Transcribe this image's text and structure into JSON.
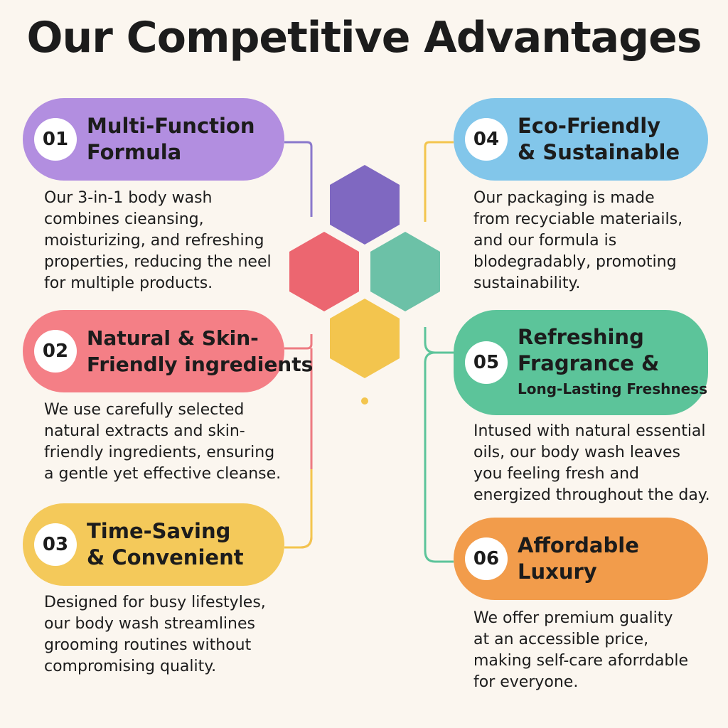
{
  "title": "Our Competitive Advantages",
  "items": [
    {
      "number": "01",
      "title_lines": [
        "Multi-Function",
        "Formula"
      ],
      "desc_lines": [
        "Our 3-in-1 body wash",
        "combines cieansing,",
        "moisturizing, and refreshing",
        "properties, reducing the neel",
        "for multiple products."
      ],
      "color": "#b28ee0"
    },
    {
      "number": "02",
      "title_lines": [
        "Natural & Skin-",
        "Friendly ingredients"
      ],
      "desc_lines": [
        "We use carefully selected",
        "natural extracts and skin-",
        "friendly ingredients, ensuring",
        "a gentle yet effective cleanse."
      ],
      "color": "#f47f86"
    },
    {
      "number": "03",
      "title_lines": [
        "Time-Saving",
        "& Convenient"
      ],
      "desc_lines": [
        "Designed for busy lifestyles,",
        "our body wash streamlines",
        "grooming routines without",
        "compromising quality."
      ],
      "color": "#f4c95a"
    },
    {
      "number": "04",
      "title_lines": [
        "Eco-Friendly",
        "& Sustainable"
      ],
      "desc_lines": [
        "Our packaging is made",
        "from recyciable materiails,",
        "and our formula is",
        "blodegradably, promoting",
        "sustainability."
      ],
      "color": "#82c6ea"
    },
    {
      "number": "05",
      "title_lines": [
        "Refreshing",
        "Fragrance &",
        "Long-Lasting Freshness"
      ],
      "desc_lines": [
        "Intused with natural essential",
        "oils, our body wash leaves",
        "you feeling fresh and",
        "energized throughout the day."
      ],
      "color": "#5cc49a"
    },
    {
      "number": "06",
      "title_lines": [
        "Affordable",
        "Luxury"
      ],
      "desc_lines": [
        "We offer premium guality",
        "at an accessible price,",
        "making self-care aforrdable",
        "for everyone."
      ],
      "color": "#f29c4b"
    }
  ],
  "hexagons": [
    {
      "name": "hexagon-purple",
      "color": "#7f68c1"
    },
    {
      "name": "hexagon-red",
      "color": "#ec6670"
    },
    {
      "name": "hexagon-teal",
      "color": "#6cc1a7"
    },
    {
      "name": "hexagon-yellow",
      "color": "#f3c54e"
    }
  ],
  "connector_colors": {
    "purple": "#8a78cc",
    "pink": "#ee7b82",
    "yellow": "#f3c54e",
    "teal": "#5cc49a"
  }
}
